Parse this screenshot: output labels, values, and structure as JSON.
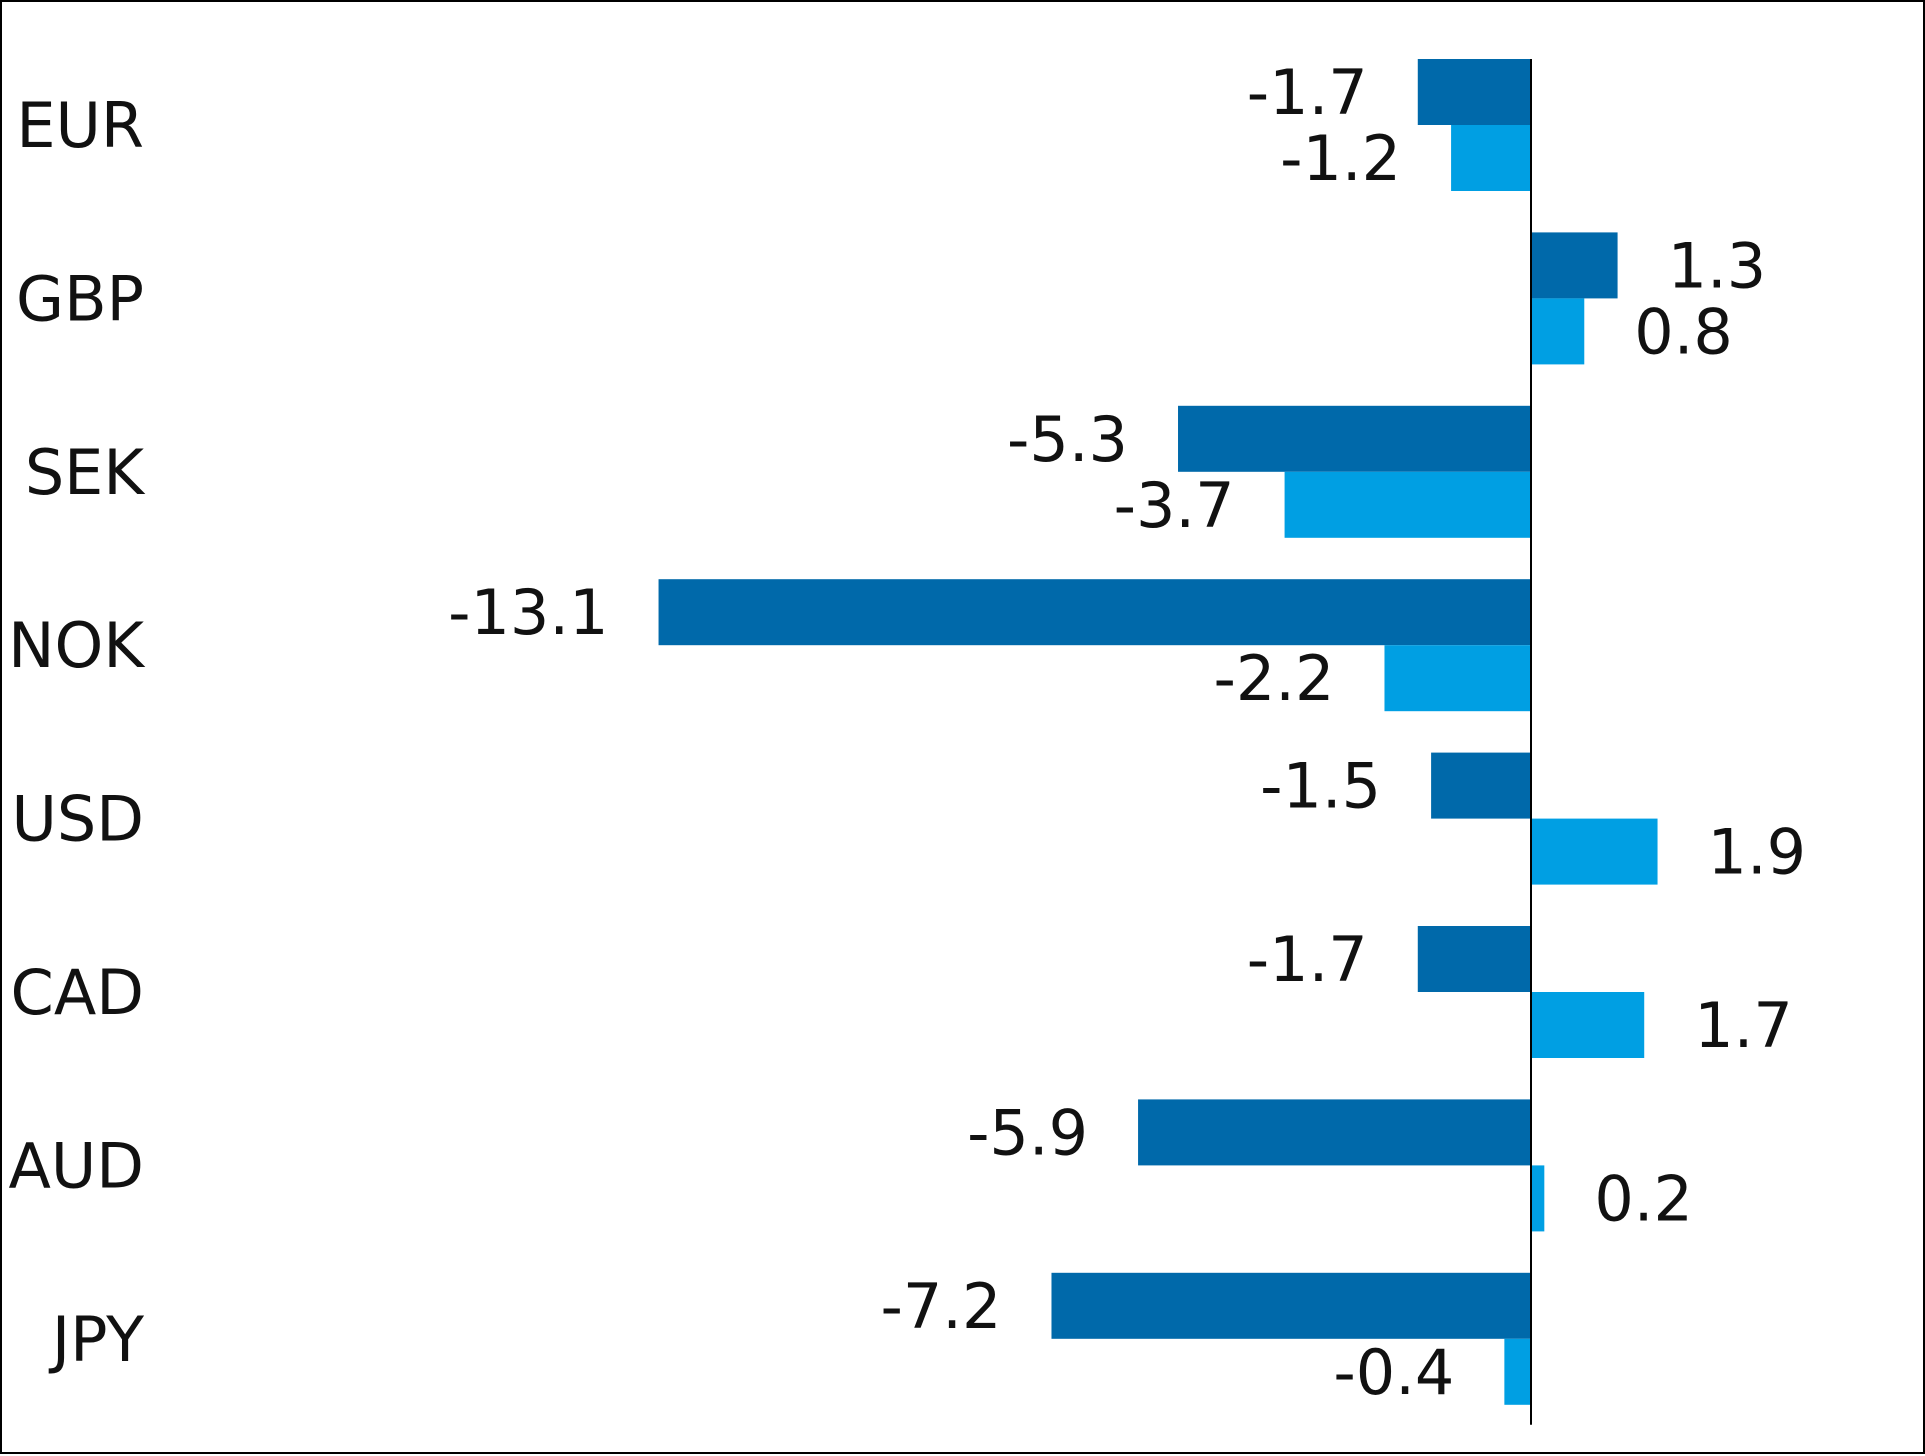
{
  "chart_data": {
    "type": "bar",
    "orientation": "horizontal",
    "categories": [
      "EUR",
      "GBP",
      "SEK",
      "NOK",
      "USD",
      "CAD",
      "AUD",
      "JPY"
    ],
    "series": [
      {
        "color": "#0069aa",
        "values": [
          -1.7,
          1.3,
          -5.3,
          -13.1,
          -1.5,
          -1.7,
          -5.9,
          -7.2
        ],
        "value_labels": [
          "-1.7",
          "1.3",
          "-5.3",
          "-13.1",
          "-1.5",
          "-1.7",
          "-5.9",
          "-7.2"
        ]
      },
      {
        "color": "#009fe3",
        "values": [
          -1.2,
          0.8,
          -3.7,
          -2.2,
          1.9,
          1.7,
          0.2,
          -0.4
        ],
        "value_labels": [
          "-1.2",
          "0.8",
          "-3.7",
          "-2.2",
          "1.9",
          "1.7",
          "0.2",
          "-0.4"
        ]
      }
    ],
    "xlim": [
      -20,
      6
    ],
    "grid": false,
    "legend": "none",
    "title": "",
    "xlabel": "",
    "ylabel": ""
  }
}
